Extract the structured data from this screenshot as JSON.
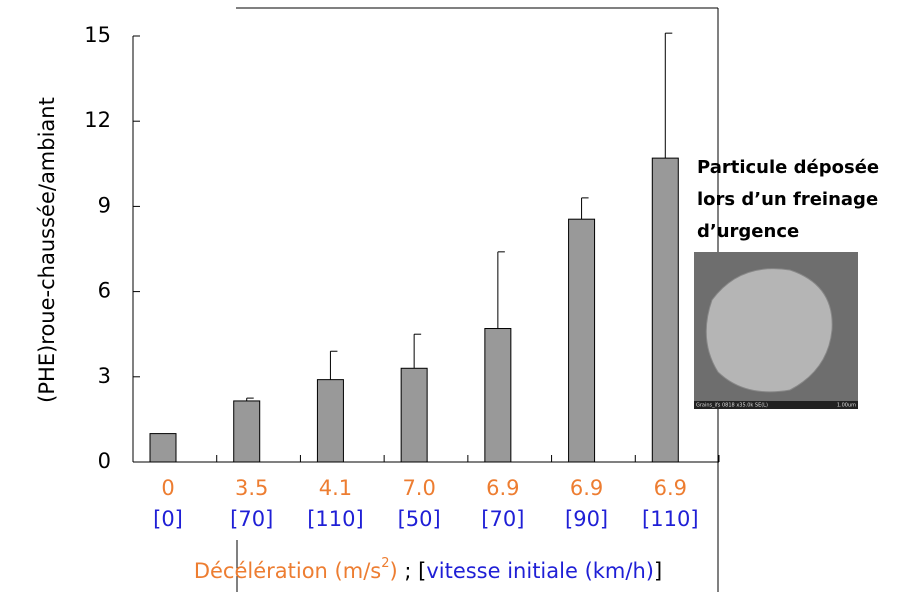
{
  "chart_data": {
    "type": "bar",
    "ylabel": "(PHE)roue-chaussée/ambiant",
    "categories": [
      "0",
      "3.5",
      "4.1",
      "7.0",
      "6.9",
      "6.9",
      "6.9"
    ],
    "category_speeds": [
      "[0]",
      "[70]",
      "[110]",
      "[50]",
      "[70]",
      "[90]",
      "[110]"
    ],
    "xlabel_parts": [
      "Décélération (m/s",
      "2",
      ")",
      " ; [",
      "vitesse initiale (km/h)",
      "]"
    ],
    "values": [
      1.0,
      2.15,
      2.9,
      3.3,
      4.7,
      8.55,
      10.7
    ],
    "errors": [
      0,
      0.1,
      1.0,
      1.2,
      2.7,
      0.75,
      4.4
    ],
    "color": "#999999",
    "deceleration_color": "#ed7d31",
    "speed_color": "#1f1fd6",
    "ylim": [
      0,
      15
    ],
    "yticks": [
      0,
      3,
      6,
      9,
      12,
      15
    ],
    "annotation": [
      "Particule déposée",
      "lors d’un freinage",
      "d’urgence"
    ],
    "image_caption": [
      "Grains_ifs 0818 x35.0k SE(L)",
      "1.00um"
    ]
  }
}
